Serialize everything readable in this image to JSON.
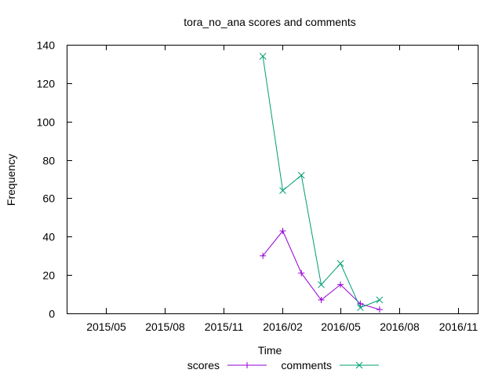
{
  "chart_data": {
    "type": "line",
    "title": "tora_no_ana scores and comments",
    "xlabel": "Time",
    "ylabel": "Frequency",
    "ylim": [
      0,
      140
    ],
    "xlim": [
      "2015-03-01",
      "2016-12-01"
    ],
    "yticks": [
      0,
      20,
      40,
      60,
      80,
      100,
      120,
      140
    ],
    "xticks": [
      {
        "date": "2015-05-01",
        "label": "2015/05"
      },
      {
        "date": "2015-08-01",
        "label": "2015/08"
      },
      {
        "date": "2015-11-01",
        "label": "2015/11"
      },
      {
        "date": "2016-02-01",
        "label": "2016/02"
      },
      {
        "date": "2016-05-01",
        "label": "2016/05"
      },
      {
        "date": "2016-08-01",
        "label": "2016/08"
      },
      {
        "date": "2016-11-01",
        "label": "2016/11"
      }
    ],
    "grid": false,
    "legend_position": "bottom",
    "x": [
      "2016-01-01",
      "2016-02-01",
      "2016-03-01",
      "2016-04-01",
      "2016-05-01",
      "2016-06-01",
      "2016-07-01"
    ],
    "series": [
      {
        "name": "scores",
        "marker": "plus",
        "color": "#9400d3",
        "values": [
          30,
          43,
          21,
          7,
          15,
          5,
          2
        ]
      },
      {
        "name": "comments",
        "marker": "x",
        "color": "#009e73",
        "values": [
          134,
          64,
          72,
          15,
          26,
          3,
          7
        ]
      }
    ]
  }
}
